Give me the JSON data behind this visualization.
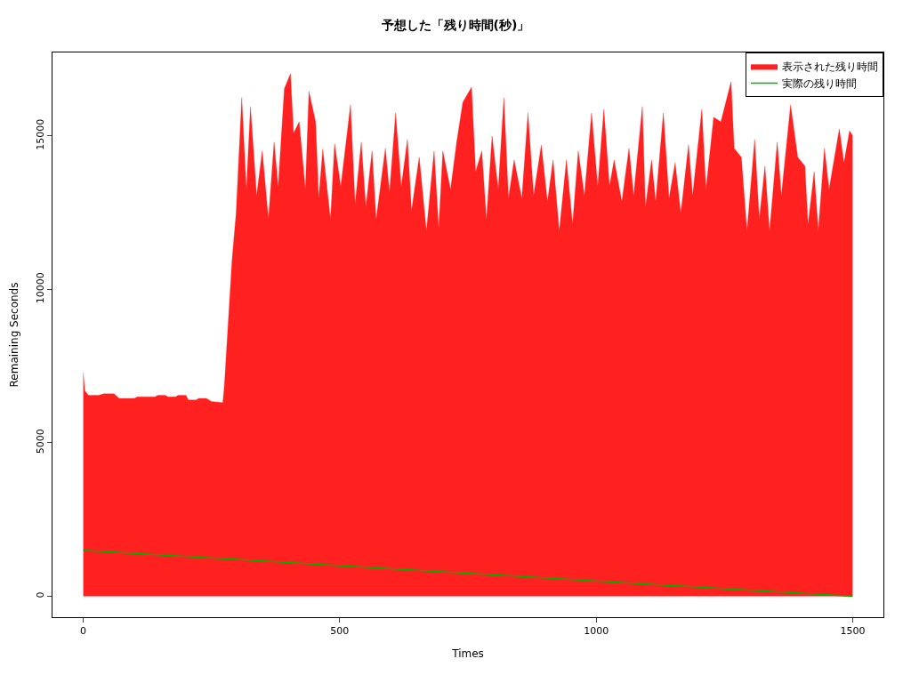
{
  "chart_data": {
    "type": "area",
    "title": "予想した「残り時間(秒)」",
    "xlabel": "Times",
    "ylabel": "Remaining Seconds",
    "xlim": [
      -60,
      1560
    ],
    "xticks": [
      0,
      500,
      1000,
      1500
    ],
    "ylim": [
      -680,
      17720
    ],
    "yticks": [
      0,
      5000,
      10000,
      15000
    ],
    "legend": "top right",
    "series": [
      {
        "name": "表示された残り時間",
        "color": "#ff2020",
        "x": [
          0,
          3,
          10,
          30,
          40,
          60,
          70,
          100,
          105,
          140,
          145,
          160,
          165,
          180,
          185,
          200,
          205,
          220,
          225,
          240,
          250,
          272,
          275,
          290,
          298,
          309,
          318,
          326,
          338,
          349,
          361,
          372,
          380,
          392,
          404,
          410,
          421,
          433,
          440,
          453,
          459,
          467,
          482,
          490,
          502,
          521,
          530,
          542,
          551,
          563,
          571,
          589,
          597,
          609,
          620,
          632,
          640,
          655,
          669,
          684,
          693,
          701,
          716,
          728,
          740,
          757,
          765,
          777,
          786,
          797,
          809,
          820,
          829,
          840,
          855,
          867,
          878,
          893,
          905,
          916,
          928,
          942,
          954,
          965,
          977,
          991,
          1003,
          1015,
          1026,
          1035,
          1050,
          1064,
          1073,
          1090,
          1096,
          1108,
          1116,
          1131,
          1142,
          1154,
          1165,
          1180,
          1188,
          1206,
          1214,
          1229,
          1243,
          1263,
          1269,
          1283,
          1294,
          1309,
          1318,
          1329,
          1338,
          1353,
          1361,
          1379,
          1393,
          1407,
          1413,
          1425,
          1433,
          1445,
          1454,
          1474,
          1483,
          1494,
          1500
        ],
        "values": [
          7300,
          6700,
          6550,
          6550,
          6600,
          6600,
          6450,
          6450,
          6500,
          6500,
          6550,
          6550,
          6500,
          6500,
          6550,
          6550,
          6400,
          6400,
          6450,
          6450,
          6350,
          6310,
          6830,
          10950,
          12480,
          16250,
          13260,
          15960,
          13060,
          14510,
          12280,
          14800,
          13350,
          16540,
          17030,
          15090,
          15460,
          13260,
          16450,
          15460,
          12970,
          14570,
          12280,
          14740,
          13350,
          16010,
          12770,
          14800,
          12680,
          14510,
          12280,
          14600,
          13150,
          15750,
          13350,
          14890,
          12570,
          14310,
          11900,
          14510,
          11990,
          14510,
          13260,
          14800,
          16100,
          16590,
          13840,
          14510,
          12280,
          15000,
          13260,
          16250,
          12970,
          14220,
          12970,
          15750,
          13060,
          14710,
          12860,
          14220,
          11900,
          14220,
          12110,
          14510,
          13060,
          15750,
          13350,
          15870,
          13350,
          14220,
          12860,
          14600,
          13060,
          15960,
          12680,
          14220,
          12860,
          15750,
          12970,
          14130,
          12480,
          14710,
          13060,
          15870,
          13260,
          15610,
          15460,
          16770,
          14600,
          14310,
          11900,
          14890,
          12280,
          14020,
          11900,
          14800,
          13060,
          16010,
          14310,
          14020,
          12110,
          13840,
          11900,
          14600,
          13260,
          15230,
          14130,
          15170,
          15000
        ]
      },
      {
        "name": "実際の残り時間",
        "color": "#00b000",
        "type": "line",
        "x": [
          0,
          1500
        ],
        "values": [
          1500,
          0
        ]
      }
    ]
  }
}
